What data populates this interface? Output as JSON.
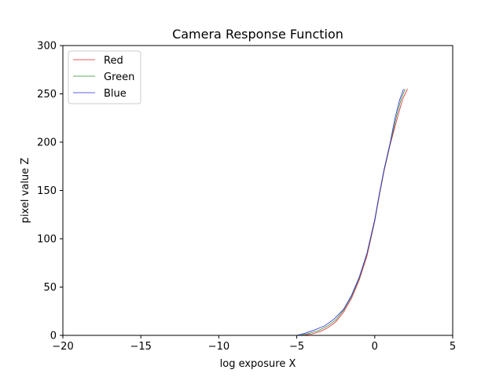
{
  "chart_data": {
    "type": "line",
    "title": "Camera Response Function",
    "xlabel": "log exposure X",
    "ylabel": "pixel value Z",
    "xlim": [
      -20,
      5
    ],
    "ylim": [
      0,
      300
    ],
    "xticks": [
      -20,
      -15,
      -10,
      -5,
      0,
      5
    ],
    "xtick_labels": [
      "−20",
      "−15",
      "−10",
      "−5",
      "0",
      "5"
    ],
    "yticks": [
      0,
      50,
      100,
      150,
      200,
      250,
      300
    ],
    "ytick_labels": [
      "0",
      "50",
      "100",
      "150",
      "200",
      "250",
      "300"
    ],
    "grid": false,
    "legend_position": "upper-left",
    "series": [
      {
        "name": "Red",
        "color": "#e0262b",
        "points": [
          [
            -4.6,
            0
          ],
          [
            -4.0,
            1.5
          ],
          [
            -3.5,
            4
          ],
          [
            -3.0,
            8
          ],
          [
            -2.5,
            14
          ],
          [
            -2.0,
            24
          ],
          [
            -1.5,
            38
          ],
          [
            -1.0,
            57
          ],
          [
            -0.5,
            82
          ],
          [
            0.0,
            118
          ],
          [
            0.3,
            145
          ],
          [
            0.6,
            170
          ],
          [
            1.0,
            198
          ],
          [
            1.5,
            228
          ],
          [
            1.8,
            245
          ],
          [
            2.1,
            255
          ]
        ]
      },
      {
        "name": "Green",
        "color": "#2e8b2e",
        "points": [
          [
            -4.8,
            0
          ],
          [
            -4.2,
            2
          ],
          [
            -3.6,
            5
          ],
          [
            -3.0,
            10
          ],
          [
            -2.5,
            16
          ],
          [
            -2.0,
            26
          ],
          [
            -1.5,
            40
          ],
          [
            -1.0,
            59
          ],
          [
            -0.5,
            84
          ],
          [
            0.0,
            119
          ],
          [
            0.3,
            146
          ],
          [
            0.6,
            171
          ],
          [
            1.0,
            199
          ],
          [
            1.4,
            227
          ],
          [
            1.7,
            245
          ],
          [
            1.95,
            255
          ]
        ]
      },
      {
        "name": "Blue",
        "color": "#2b2bd6",
        "points": [
          [
            -5.0,
            0
          ],
          [
            -4.4,
            2.5
          ],
          [
            -3.8,
            6
          ],
          [
            -3.2,
            10
          ],
          [
            -2.6,
            17
          ],
          [
            -2.0,
            27
          ],
          [
            -1.5,
            41
          ],
          [
            -1.0,
            60
          ],
          [
            -0.5,
            85
          ],
          [
            0.0,
            120
          ],
          [
            0.3,
            147
          ],
          [
            0.6,
            172
          ],
          [
            1.0,
            200
          ],
          [
            1.3,
            225
          ],
          [
            1.6,
            244
          ],
          [
            1.85,
            255
          ]
        ]
      }
    ]
  }
}
